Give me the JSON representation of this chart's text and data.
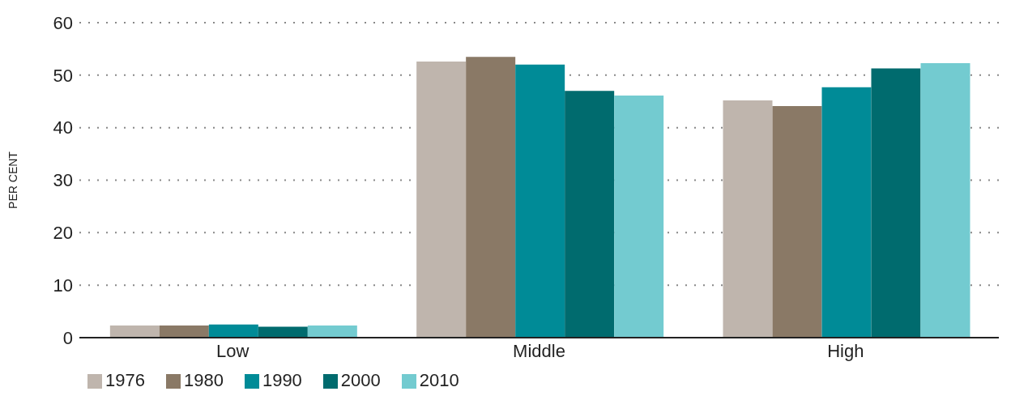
{
  "chart_data": {
    "type": "bar",
    "ylabel": "PER CENT",
    "categories": [
      "Low",
      "Middle",
      "High"
    ],
    "series": [
      {
        "name": "1976",
        "color": "#bfb5ad",
        "values": [
          2.3,
          52.6,
          45.2
        ]
      },
      {
        "name": "1980",
        "color": "#8a7966",
        "values": [
          2.3,
          53.5,
          44.1
        ]
      },
      {
        "name": "1990",
        "color": "#008b97",
        "values": [
          2.5,
          52.0,
          47.7
        ]
      },
      {
        "name": "2000",
        "color": "#006b6e",
        "values": [
          2.1,
          47.0,
          51.3
        ]
      },
      {
        "name": "2010",
        "color": "#73cbd0",
        "values": [
          2.3,
          46.1,
          52.3
        ]
      }
    ],
    "ylim": [
      0,
      60
    ],
    "yticks": [
      0,
      10,
      20,
      30,
      40,
      50,
      60
    ],
    "grid": "y",
    "legend": "bottom left"
  }
}
